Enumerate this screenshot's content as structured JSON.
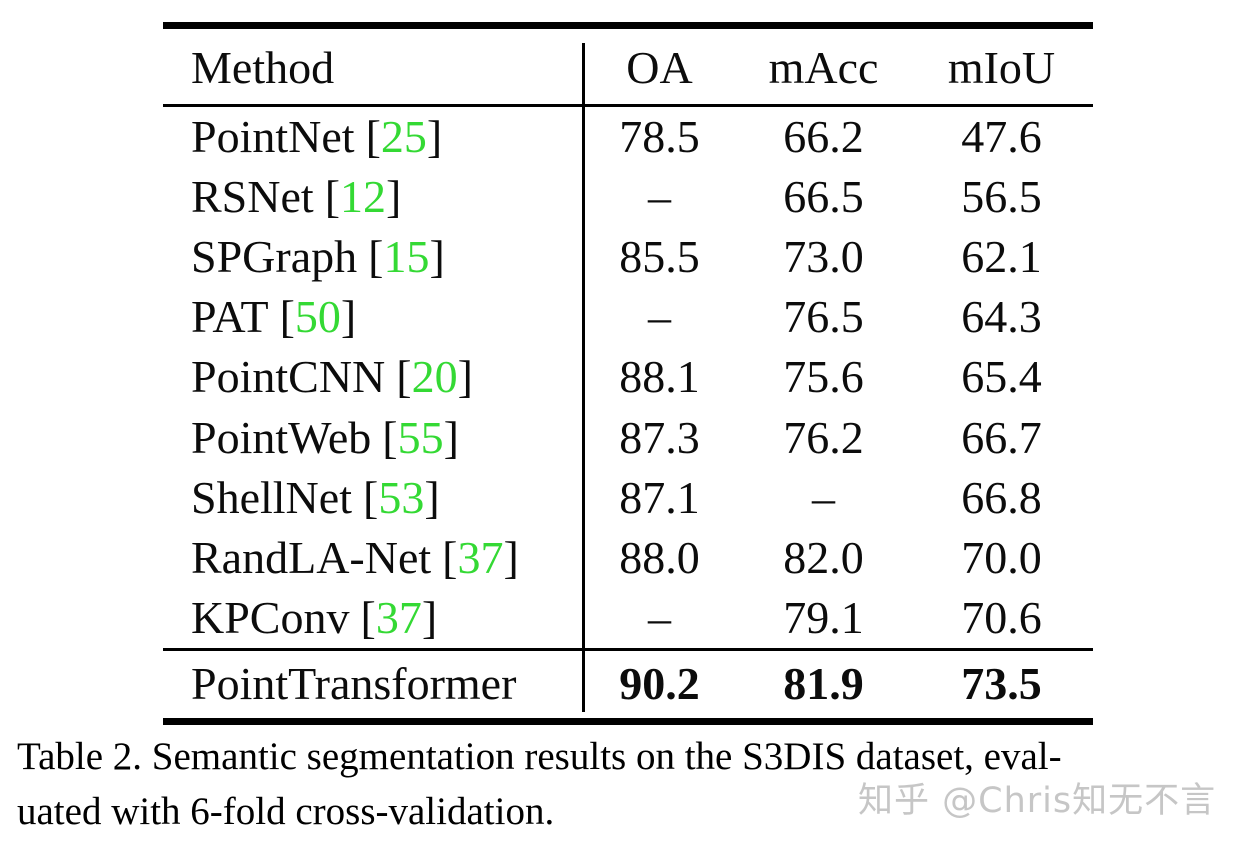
{
  "colors": {
    "cite": "#34d934",
    "wm": "#c6c6c6",
    "ink": "#0c0c0c"
  },
  "table": {
    "header": {
      "method": "Method",
      "oa": "OA",
      "macc": "mAcc",
      "miou": "mIoU"
    },
    "cite_format": {
      "open": "[",
      "close": "]"
    },
    "rows": [
      {
        "method": "PointNet",
        "cite": "25",
        "oa": "78.5",
        "macc": "66.2",
        "miou": "47.6"
      },
      {
        "method": "RSNet",
        "cite": "12",
        "oa": "–",
        "macc": "66.5",
        "miou": "56.5"
      },
      {
        "method": "SPGraph",
        "cite": "15",
        "oa": "85.5",
        "macc": "73.0",
        "miou": "62.1"
      },
      {
        "method": "PAT",
        "cite": "50",
        "oa": "–",
        "macc": "76.5",
        "miou": "64.3"
      },
      {
        "method": "PointCNN",
        "cite": "20",
        "oa": "88.1",
        "macc": "75.6",
        "miou": "65.4"
      },
      {
        "method": "PointWeb",
        "cite": "55",
        "oa": "87.3",
        "macc": "76.2",
        "miou": "66.7"
      },
      {
        "method": "ShellNet",
        "cite": "53",
        "oa": "87.1",
        "macc": "–",
        "miou": "66.8"
      },
      {
        "method": "RandLA-Net",
        "cite": "37",
        "oa": "88.0",
        "macc": "82.0",
        "miou": "70.0"
      },
      {
        "method": "KPConv",
        "cite": "37",
        "oa": "–",
        "macc": "79.1",
        "miou": "70.6"
      }
    ],
    "final_row": {
      "method": "PointTransformer",
      "oa": "90.2",
      "macc": "81.9",
      "miou": "73.5"
    }
  },
  "caption": {
    "line1": "Table 2. Semantic segmentation results on the S3DIS dataset, eval-",
    "line2": "uated with 6-fold cross-validation."
  },
  "watermark": "知乎 @Chris知无不言"
}
